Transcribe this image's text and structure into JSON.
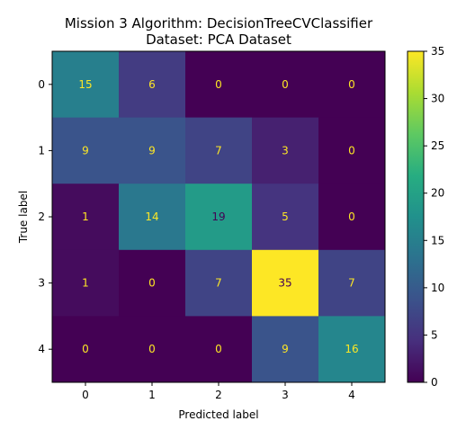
{
  "chart_data": {
    "type": "heatmap",
    "title_line1": "Mission 3 Algorithm: DecisionTreeCVClassifier",
    "title_line2": "Dataset: PCA Dataset",
    "xlabel": "Predicted label",
    "ylabel": "True label",
    "x_categories": [
      "0",
      "1",
      "2",
      "3",
      "4"
    ],
    "y_categories": [
      "0",
      "1",
      "2",
      "3",
      "4"
    ],
    "matrix": [
      [
        15,
        6,
        0,
        0,
        0
      ],
      [
        9,
        9,
        7,
        3,
        0
      ],
      [
        1,
        14,
        19,
        5,
        0
      ],
      [
        1,
        0,
        7,
        35,
        7
      ],
      [
        0,
        0,
        0,
        9,
        16
      ]
    ],
    "colormap": "viridis",
    "vmin": 0,
    "vmax": 35,
    "colorbar_ticks": [
      "0",
      "5",
      "10",
      "15",
      "20",
      "25",
      "30",
      "35"
    ],
    "text_color_dark_bg": "#fde725",
    "text_color_light_bg": "#440154"
  }
}
